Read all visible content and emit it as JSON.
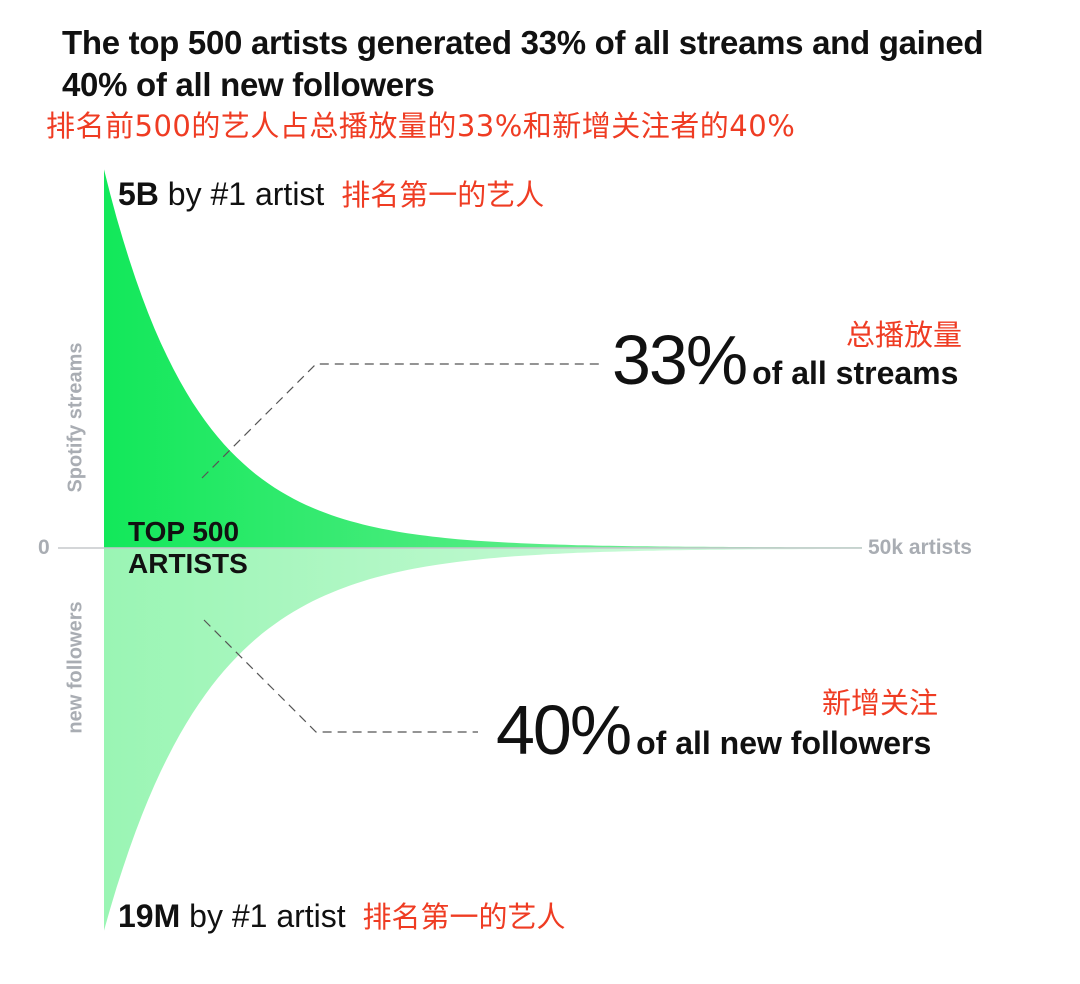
{
  "title": "The top 500 artists generated 33% of all streams and gained 40% of all new followers",
  "title_cn": "排名前500的艺人占总播放量的33%和新增关注者的40%",
  "peak_streams": {
    "value": "5B",
    "text": "by #1 artist",
    "cn": "排名第一的艺人"
  },
  "peak_followers": {
    "value": "19M",
    "text": "by #1 artist",
    "cn": "排名第一的艺人"
  },
  "axis": {
    "streams_label": "Spotify streams",
    "followers_label": "new followers",
    "zero": "0",
    "end": "50k artists"
  },
  "highlight": {
    "line1": "TOP 500",
    "line2": "ARTISTS"
  },
  "stats": {
    "streams": {
      "big": "33%",
      "small": "of all streams",
      "cn": "总播放量"
    },
    "followers": {
      "big": "40%",
      "small": "of all new followers",
      "cn": "新增关注"
    }
  },
  "colors": {
    "streams_strong": "#12e85a",
    "streams_light": "#8df0a8",
    "followers_strong": "#9af5b4",
    "followers_light": "#d8fbe2",
    "accent_cn": "#ef3c23",
    "axis_gray": "#a9adb3"
  },
  "chart_data": {
    "type": "area",
    "title": "The top 500 artists generated 33% of all streams and gained 40% of all new followers",
    "x_range": [
      0,
      50000
    ],
    "x_unit": "artists",
    "series": [
      {
        "name": "Spotify streams",
        "peak": 5000000000,
        "top500_share": 0.33
      },
      {
        "name": "new followers",
        "peak": 19000000,
        "top500_share": 0.4
      }
    ],
    "highlight_artists": 500
  }
}
